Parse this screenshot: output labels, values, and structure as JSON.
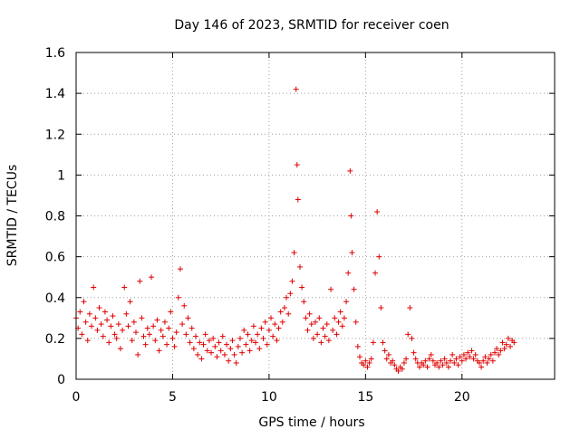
{
  "chart_data": {
    "type": "scatter",
    "title": "Day 146 of 2023, SRMTID for receiver coen",
    "xlabel": "GPS time / hours",
    "ylabel": "SRMTID / TECUs",
    "xlim": [
      0,
      24.8
    ],
    "ylim": [
      0,
      1.6
    ],
    "xticks": [
      0,
      5,
      10,
      15,
      20
    ],
    "xtick_labels": [
      "0",
      "5",
      "10",
      "15",
      "20"
    ],
    "yticks": [
      0,
      0.2,
      0.4,
      0.6,
      0.8,
      1,
      1.2,
      1.4,
      1.6
    ],
    "ytick_labels": [
      "0",
      "0.2",
      "0.4",
      "0.6",
      "0.8",
      "1",
      "1.2",
      "1.4",
      "1.6"
    ],
    "grid": true,
    "marker": "plus",
    "series": [
      {
        "name": "SRMTID",
        "color": "#e00000",
        "points": [
          [
            0.0,
            0.3
          ],
          [
            0.1,
            0.25
          ],
          [
            0.2,
            0.33
          ],
          [
            0.3,
            0.22
          ],
          [
            0.4,
            0.38
          ],
          [
            0.5,
            0.28
          ],
          [
            0.6,
            0.19
          ],
          [
            0.7,
            0.32
          ],
          [
            0.8,
            0.26
          ],
          [
            0.9,
            0.45
          ],
          [
            1.0,
            0.3
          ],
          [
            1.1,
            0.24
          ],
          [
            1.2,
            0.35
          ],
          [
            1.3,
            0.27
          ],
          [
            1.4,
            0.21
          ],
          [
            1.5,
            0.33
          ],
          [
            1.6,
            0.29
          ],
          [
            1.7,
            0.18
          ],
          [
            1.8,
            0.26
          ],
          [
            1.9,
            0.31
          ],
          [
            2.0,
            0.22
          ],
          [
            2.1,
            0.2
          ],
          [
            2.2,
            0.27
          ],
          [
            2.3,
            0.15
          ],
          [
            2.4,
            0.24
          ],
          [
            2.5,
            0.45
          ],
          [
            2.6,
            0.32
          ],
          [
            2.7,
            0.26
          ],
          [
            2.8,
            0.38
          ],
          [
            2.9,
            0.19
          ],
          [
            3.0,
            0.28
          ],
          [
            3.1,
            0.23
          ],
          [
            3.2,
            0.12
          ],
          [
            3.3,
            0.48
          ],
          [
            3.4,
            0.3
          ],
          [
            3.5,
            0.21
          ],
          [
            3.6,
            0.17
          ],
          [
            3.7,
            0.25
          ],
          [
            3.8,
            0.22
          ],
          [
            3.9,
            0.5
          ],
          [
            4.0,
            0.26
          ],
          [
            4.1,
            0.19
          ],
          [
            4.2,
            0.29
          ],
          [
            4.3,
            0.14
          ],
          [
            4.4,
            0.24
          ],
          [
            4.5,
            0.21
          ],
          [
            4.6,
            0.28
          ],
          [
            4.7,
            0.17
          ],
          [
            4.8,
            0.25
          ],
          [
            4.9,
            0.33
          ],
          [
            5.0,
            0.2
          ],
          [
            5.1,
            0.16
          ],
          [
            5.2,
            0.23
          ],
          [
            5.3,
            0.4
          ],
          [
            5.4,
            0.54
          ],
          [
            5.5,
            0.27
          ],
          [
            5.6,
            0.36
          ],
          [
            5.7,
            0.22
          ],
          [
            5.8,
            0.3
          ],
          [
            5.9,
            0.18
          ],
          [
            6.0,
            0.25
          ],
          [
            6.1,
            0.15
          ],
          [
            6.2,
            0.21
          ],
          [
            6.3,
            0.12
          ],
          [
            6.4,
            0.18
          ],
          [
            6.5,
            0.1
          ],
          [
            6.6,
            0.17
          ],
          [
            6.7,
            0.22
          ],
          [
            6.8,
            0.14
          ],
          [
            6.9,
            0.19
          ],
          [
            7.0,
            0.13
          ],
          [
            7.1,
            0.2
          ],
          [
            7.2,
            0.16
          ],
          [
            7.3,
            0.11
          ],
          [
            7.4,
            0.18
          ],
          [
            7.5,
            0.14
          ],
          [
            7.6,
            0.21
          ],
          [
            7.7,
            0.12
          ],
          [
            7.8,
            0.17
          ],
          [
            7.9,
            0.09
          ],
          [
            8.0,
            0.15
          ],
          [
            8.1,
            0.19
          ],
          [
            8.2,
            0.12
          ],
          [
            8.3,
            0.08
          ],
          [
            8.4,
            0.16
          ],
          [
            8.5,
            0.2
          ],
          [
            8.6,
            0.13
          ],
          [
            8.7,
            0.24
          ],
          [
            8.8,
            0.17
          ],
          [
            8.9,
            0.22
          ],
          [
            9.0,
            0.14
          ],
          [
            9.1,
            0.19
          ],
          [
            9.2,
            0.26
          ],
          [
            9.3,
            0.18
          ],
          [
            9.4,
            0.22
          ],
          [
            9.5,
            0.15
          ],
          [
            9.6,
            0.25
          ],
          [
            9.7,
            0.2
          ],
          [
            9.8,
            0.28
          ],
          [
            9.9,
            0.17
          ],
          [
            10.0,
            0.24
          ],
          [
            10.1,
            0.3
          ],
          [
            10.2,
            0.21
          ],
          [
            10.3,
            0.27
          ],
          [
            10.4,
            0.19
          ],
          [
            10.5,
            0.25
          ],
          [
            10.6,
            0.33
          ],
          [
            10.7,
            0.28
          ],
          [
            10.8,
            0.35
          ],
          [
            10.9,
            0.4
          ],
          [
            11.0,
            0.32
          ],
          [
            11.1,
            0.42
          ],
          [
            11.2,
            0.48
          ],
          [
            11.3,
            0.62
          ],
          [
            11.4,
            1.42
          ],
          [
            11.45,
            1.05
          ],
          [
            11.5,
            0.88
          ],
          [
            11.6,
            0.55
          ],
          [
            11.7,
            0.45
          ],
          [
            11.8,
            0.38
          ],
          [
            11.9,
            0.3
          ],
          [
            12.0,
            0.24
          ],
          [
            12.1,
            0.32
          ],
          [
            12.2,
            0.27
          ],
          [
            12.3,
            0.2
          ],
          [
            12.4,
            0.28
          ],
          [
            12.5,
            0.22
          ],
          [
            12.6,
            0.3
          ],
          [
            12.7,
            0.18
          ],
          [
            12.8,
            0.25
          ],
          [
            12.9,
            0.21
          ],
          [
            13.0,
            0.27
          ],
          [
            13.1,
            0.19
          ],
          [
            13.2,
            0.44
          ],
          [
            13.3,
            0.24
          ],
          [
            13.4,
            0.3
          ],
          [
            13.5,
            0.22
          ],
          [
            13.6,
            0.28
          ],
          [
            13.7,
            0.33
          ],
          [
            13.8,
            0.26
          ],
          [
            13.9,
            0.3
          ],
          [
            14.0,
            0.38
          ],
          [
            14.1,
            0.52
          ],
          [
            14.2,
            1.02
          ],
          [
            14.25,
            0.8
          ],
          [
            14.3,
            0.62
          ],
          [
            14.4,
            0.44
          ],
          [
            14.5,
            0.28
          ],
          [
            14.6,
            0.16
          ],
          [
            14.7,
            0.11
          ],
          [
            14.8,
            0.08
          ],
          [
            14.9,
            0.07
          ],
          [
            15.0,
            0.09
          ],
          [
            15.1,
            0.06
          ],
          [
            15.2,
            0.08
          ],
          [
            15.3,
            0.1
          ],
          [
            15.4,
            0.18
          ],
          [
            15.5,
            0.52
          ],
          [
            15.6,
            0.82
          ],
          [
            15.7,
            0.6
          ],
          [
            15.8,
            0.35
          ],
          [
            15.9,
            0.18
          ],
          [
            16.0,
            0.14
          ],
          [
            16.1,
            0.1
          ],
          [
            16.2,
            0.12
          ],
          [
            16.3,
            0.08
          ],
          [
            16.4,
            0.09
          ],
          [
            16.5,
            0.07
          ],
          [
            16.6,
            0.05
          ],
          [
            16.7,
            0.04
          ],
          [
            16.8,
            0.06
          ],
          [
            16.9,
            0.05
          ],
          [
            17.0,
            0.08
          ],
          [
            17.1,
            0.1
          ],
          [
            17.2,
            0.22
          ],
          [
            17.3,
            0.35
          ],
          [
            17.4,
            0.2
          ],
          [
            17.5,
            0.13
          ],
          [
            17.6,
            0.1
          ],
          [
            17.7,
            0.08
          ],
          [
            17.8,
            0.06
          ],
          [
            17.9,
            0.08
          ],
          [
            18.0,
            0.07
          ],
          [
            18.1,
            0.09
          ],
          [
            18.2,
            0.06
          ],
          [
            18.3,
            0.1
          ],
          [
            18.4,
            0.12
          ],
          [
            18.5,
            0.09
          ],
          [
            18.6,
            0.07
          ],
          [
            18.7,
            0.08
          ],
          [
            18.8,
            0.06
          ],
          [
            18.9,
            0.09
          ],
          [
            19.0,
            0.07
          ],
          [
            19.1,
            0.1
          ],
          [
            19.2,
            0.08
          ],
          [
            19.3,
            0.06
          ],
          [
            19.4,
            0.09
          ],
          [
            19.5,
            0.12
          ],
          [
            19.6,
            0.08
          ],
          [
            19.7,
            0.1
          ],
          [
            19.8,
            0.07
          ],
          [
            19.9,
            0.11
          ],
          [
            20.0,
            0.09
          ],
          [
            20.1,
            0.12
          ],
          [
            20.2,
            0.1
          ],
          [
            20.3,
            0.13
          ],
          [
            20.4,
            0.11
          ],
          [
            20.5,
            0.14
          ],
          [
            20.6,
            0.1
          ],
          [
            20.7,
            0.12
          ],
          [
            20.8,
            0.09
          ],
          [
            20.9,
            0.08
          ],
          [
            21.0,
            0.06
          ],
          [
            21.1,
            0.09
          ],
          [
            21.2,
            0.11
          ],
          [
            21.3,
            0.08
          ],
          [
            21.4,
            0.1
          ],
          [
            21.5,
            0.12
          ],
          [
            21.6,
            0.09
          ],
          [
            21.7,
            0.13
          ],
          [
            21.8,
            0.15
          ],
          [
            21.9,
            0.12
          ],
          [
            22.0,
            0.14
          ],
          [
            22.1,
            0.18
          ],
          [
            22.2,
            0.15
          ],
          [
            22.3,
            0.17
          ],
          [
            22.4,
            0.2
          ],
          [
            22.5,
            0.16
          ],
          [
            22.6,
            0.19
          ],
          [
            22.7,
            0.18
          ]
        ]
      }
    ]
  }
}
